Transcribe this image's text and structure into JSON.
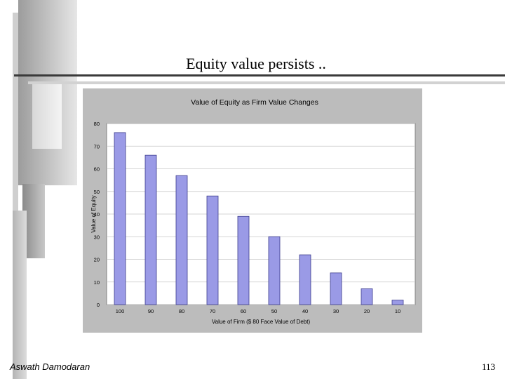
{
  "slide": {
    "title": "Equity value persists ..",
    "footer_author": "Aswath Damodaran",
    "page_number": "113"
  },
  "colors": {
    "bar_fill": "#9a9ae6",
    "bar_stroke": "#3c3c8c",
    "plot_bg": "#ffffff",
    "panel_bg": "#bcbcbc"
  },
  "chart_data": {
    "type": "bar",
    "title": "Value of Equity as Firm Value Changes",
    "xlabel": "Value of Firm ($ 80 Face Value of Debt)",
    "ylabel": "Value of Equity",
    "categories": [
      "100",
      "90",
      "80",
      "70",
      "60",
      "50",
      "40",
      "30",
      "20",
      "10"
    ],
    "values": [
      76,
      66,
      57,
      48,
      39,
      30,
      22,
      14,
      7,
      2
    ],
    "ylim": [
      0,
      80
    ],
    "yticks": [
      "0",
      "10",
      "20",
      "30",
      "40",
      "50",
      "60",
      "70",
      "80"
    ],
    "grid": true,
    "legend": "none"
  }
}
